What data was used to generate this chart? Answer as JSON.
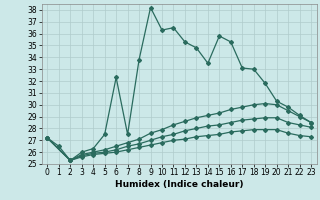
{
  "xlabel": "Humidex (Indice chaleur)",
  "background_color": "#cce8e8",
  "grid_color": "#b0cccc",
  "line_color": "#2a6b5e",
  "xlim": [
    -0.5,
    23.5
  ],
  "ylim": [
    25,
    38.5
  ],
  "yticks": [
    25,
    26,
    27,
    28,
    29,
    30,
    31,
    32,
    33,
    34,
    35,
    36,
    37,
    38
  ],
  "xticks": [
    0,
    1,
    2,
    3,
    4,
    5,
    6,
    7,
    8,
    9,
    10,
    11,
    12,
    13,
    14,
    15,
    16,
    17,
    18,
    19,
    20,
    21,
    22,
    23
  ],
  "series": [
    {
      "x": [
        0,
        1,
        2,
        3,
        4,
        5,
        6,
        7,
        8,
        9,
        10,
        11,
        12,
        13,
        14,
        15,
        16,
        17,
        18,
        19,
        20,
        21,
        22,
        23
      ],
      "y": [
        27.2,
        26.5,
        25.3,
        26.0,
        26.3,
        27.5,
        32.3,
        27.5,
        33.8,
        38.2,
        36.3,
        36.5,
        35.3,
        34.8,
        33.5,
        35.8,
        35.3,
        33.1,
        33.0,
        31.8,
        30.3,
        29.8,
        29.1,
        28.5
      ]
    },
    {
      "x": [
        0,
        2,
        3,
        4,
        5,
        6,
        7,
        8,
        9,
        10,
        11,
        12,
        13,
        14,
        15,
        16,
        17,
        18,
        19,
        20,
        21,
        22,
        23
      ],
      "y": [
        27.2,
        25.3,
        25.8,
        26.0,
        26.2,
        26.5,
        26.8,
        27.1,
        27.6,
        27.9,
        28.3,
        28.6,
        28.9,
        29.1,
        29.3,
        29.6,
        29.8,
        30.0,
        30.1,
        30.0,
        29.5,
        29.0,
        28.5
      ]
    },
    {
      "x": [
        0,
        2,
        3,
        4,
        5,
        6,
        7,
        8,
        9,
        10,
        11,
        12,
        13,
        14,
        15,
        16,
        17,
        18,
        19,
        20,
        21,
        22,
        23
      ],
      "y": [
        27.2,
        25.3,
        25.7,
        25.9,
        26.0,
        26.2,
        26.5,
        26.7,
        27.0,
        27.3,
        27.5,
        27.8,
        28.0,
        28.2,
        28.3,
        28.5,
        28.7,
        28.8,
        28.9,
        28.9,
        28.5,
        28.3,
        28.1
      ]
    },
    {
      "x": [
        0,
        2,
        3,
        4,
        5,
        6,
        7,
        8,
        9,
        10,
        11,
        12,
        13,
        14,
        15,
        16,
        17,
        18,
        19,
        20,
        21,
        22,
        23
      ],
      "y": [
        27.2,
        25.3,
        25.6,
        25.8,
        25.9,
        26.0,
        26.2,
        26.4,
        26.6,
        26.8,
        27.0,
        27.1,
        27.3,
        27.4,
        27.5,
        27.7,
        27.8,
        27.9,
        27.9,
        27.9,
        27.6,
        27.4,
        27.3
      ]
    }
  ],
  "marker": "D",
  "marker_size": 2.0,
  "linewidth": 0.9,
  "fontsize_label": 6.5,
  "fontsize_tick": 5.5
}
